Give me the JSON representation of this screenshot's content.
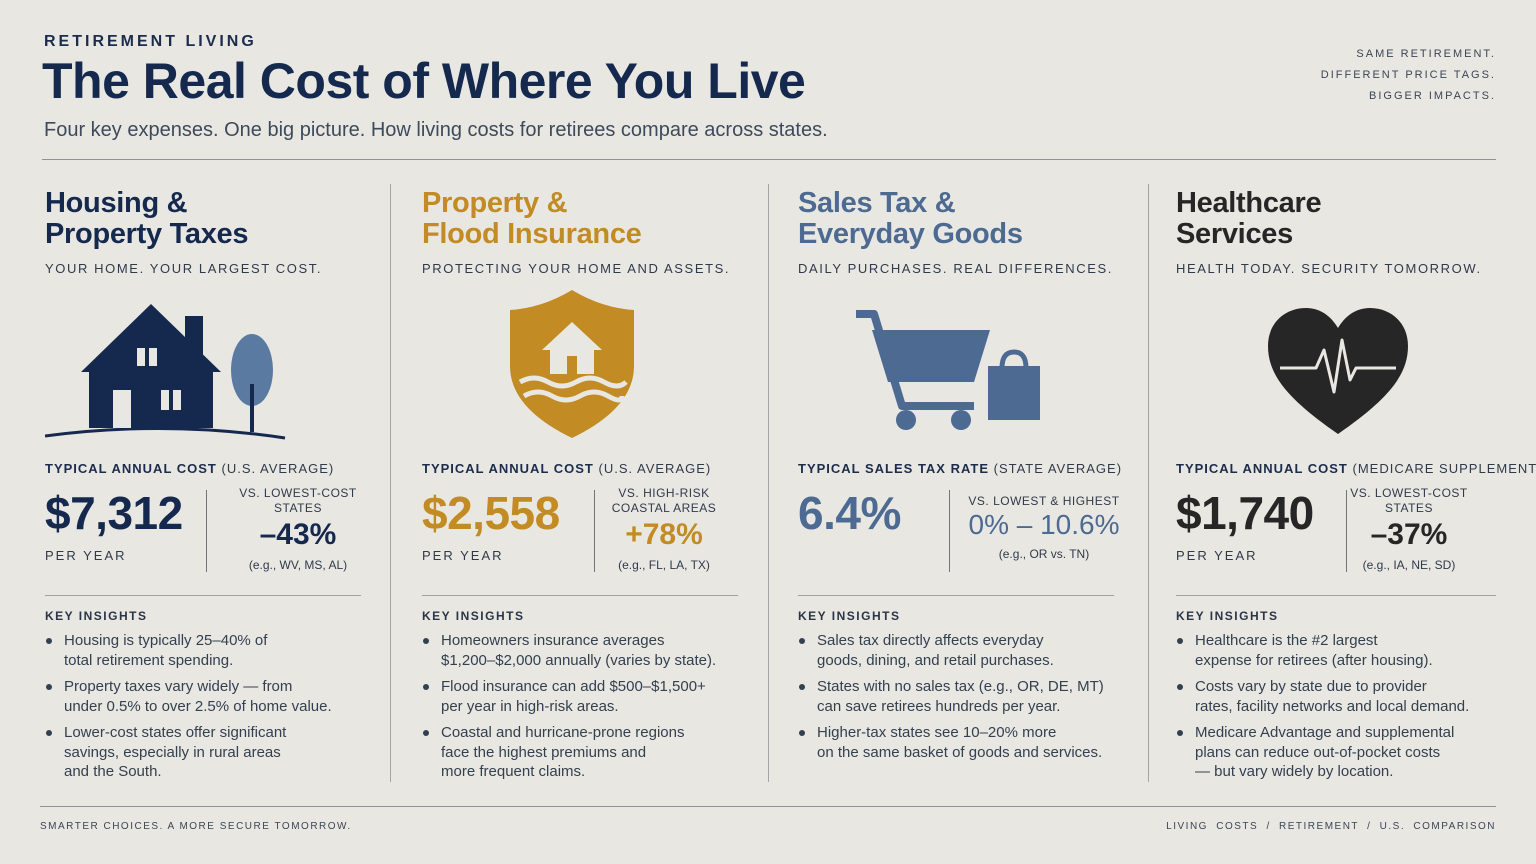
{
  "header": {
    "eyebrow": "RETIREMENT LIVING",
    "title": "The Real Cost of Where You Live",
    "subtitle": "Four key expenses. One big picture. How living costs for retirees compare across states.",
    "tagline": [
      "SAME RETIREMENT.",
      "DIFFERENT PRICE TAGS.",
      "BIGGER IMPACTS."
    ]
  },
  "colors": {
    "navy": "#15294f",
    "gold": "#c28b23",
    "slate": "#4c6a92",
    "dark": "#262626",
    "background": "#e9e7e2"
  },
  "columns": [
    {
      "title_line1": "Housing &",
      "title_line2": "Property Taxes",
      "kicker": "YOUR HOME. YOUR LARGEST COST.",
      "icon": "house-icon",
      "cost_label_bold": "TYPICAL ANNUAL COST",
      "cost_label_rest": " (U.S. AVERAGE)",
      "value": "$7,312",
      "per_year": "PER YEAR",
      "compare_label_line1": "VS. LOWEST-COST",
      "compare_label_line2": "STATES",
      "compare_value": "–43%",
      "compare_example": "(e.g., WV, MS, AL)",
      "insights_label": "KEY INSIGHTS",
      "insights": [
        [
          "Housing is typically 25–40% of",
          "total retirement spending."
        ],
        [
          "Property taxes vary widely — from",
          "under 0.5% to over 2.5% of home value."
        ],
        [
          "Lower-cost states offer significant",
          "savings, especially in rural areas",
          "and the South."
        ]
      ]
    },
    {
      "title_line1": "Property &",
      "title_line2": "Flood Insurance",
      "kicker": "PROTECTING YOUR HOME AND ASSETS.",
      "icon": "shield-home-icon",
      "cost_label_bold": "TYPICAL ANNUAL COST",
      "cost_label_rest": " (U.S. AVERAGE)",
      "value": "$2,558",
      "per_year": "PER YEAR",
      "compare_label_line1": "VS. HIGH-RISK",
      "compare_label_line2": "COASTAL AREAS",
      "compare_value": "+78%",
      "compare_example": "(e.g., FL, LA, TX)",
      "insights_label": "KEY INSIGHTS",
      "insights": [
        [
          "Homeowners insurance averages",
          "$1,200–$2,000 annually (varies by state)."
        ],
        [
          "Flood insurance can add $500–$1,500+",
          "per year in high-risk areas."
        ],
        [
          "Coastal and hurricane-prone regions",
          "face the highest premiums and",
          "more frequent claims."
        ]
      ]
    },
    {
      "title_line1": "Sales Tax &",
      "title_line2": "Everyday Goods",
      "kicker": "DAILY PURCHASES. REAL DIFFERENCES.",
      "icon": "shopping-cart-icon",
      "cost_label_bold": "TYPICAL SALES TAX RATE",
      "cost_label_rest": " (STATE AVERAGE)",
      "value": "6.4%",
      "per_year": "",
      "compare_label_line1": "VS. LOWEST & HIGHEST",
      "compare_label_line2": "",
      "compare_value": "0% – 10.6%",
      "compare_example": "(e.g., OR vs. TN)",
      "insights_label": "KEY INSIGHTS",
      "insights": [
        [
          "Sales tax directly affects everyday",
          "goods, dining, and retail purchases."
        ],
        [
          "States with no sales tax (e.g., OR, DE, MT)",
          "can save retirees hundreds per year."
        ],
        [
          "Higher-tax states see 10–20% more",
          "on the same basket of goods and services."
        ]
      ]
    },
    {
      "title_line1": "Healthcare",
      "title_line2": "Services",
      "kicker": "HEALTH TODAY. SECURITY TOMORROW.",
      "icon": "heart-pulse-icon",
      "cost_label_bold": "TYPICAL ANNUAL COST",
      "cost_label_rest": " (MEDICARE SUPPLEMENT)",
      "value": "$1,740",
      "per_year": "PER YEAR",
      "compare_label_line1": "VS. LOWEST-COST",
      "compare_label_line2": "STATES",
      "compare_value": "–37%",
      "compare_example": "(e.g., IA, NE, SD)",
      "insights_label": "KEY INSIGHTS",
      "insights": [
        [
          "Healthcare is the #2 largest",
          "expense for retirees (after housing)."
        ],
        [
          "Costs vary by state due to provider",
          "rates, facility networks and local demand."
        ],
        [
          "Medicare Advantage and supplemental",
          "plans can reduce out-of-pocket costs",
          "— but vary widely by location."
        ]
      ]
    }
  ],
  "footer": {
    "left": "SMARTER CHOICES. A MORE SECURE TOMORROW.",
    "right": "LIVING COSTS  /  RETIREMENT  /  U.S. COMPARISON"
  }
}
